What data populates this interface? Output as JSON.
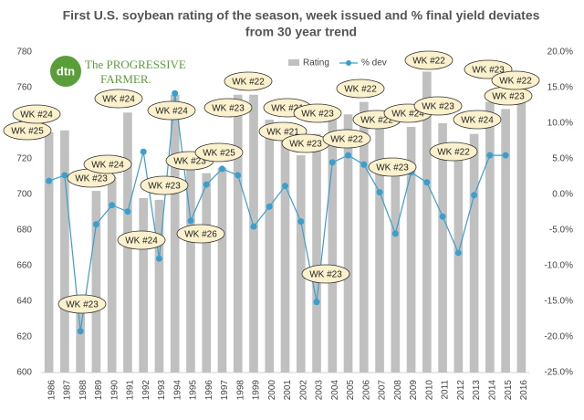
{
  "chart_data": {
    "type": "bar_line",
    "title": "First U.S. soybean rating of the season, week issued and % final yield deviates",
    "subtitle": "from 30 year trend",
    "logo_mark": "dtn",
    "logo_line1": "The PROGRESSIVE",
    "logo_line2": "FARMER.",
    "categories": [
      "1986",
      "1987",
      "1988",
      "1989",
      "1990",
      "1991",
      "1992",
      "1993",
      "1994",
      "1995",
      "1996",
      "1997",
      "1998",
      "1999",
      "2000",
      "2001",
      "2002",
      "2003",
      "2004",
      "2005",
      "2006",
      "2007",
      "2008",
      "2009",
      "2010",
      "2011",
      "2012",
      "2013",
      "2014",
      "2015",
      "2016"
    ],
    "series": [
      {
        "name": "Rating",
        "color": "#c0c0c0",
        "values": [
          735,
          736,
          636,
          702,
          710,
          746,
          698,
          697,
          756,
          718,
          712,
          715,
          756,
          756,
          742,
          735,
          722,
          734,
          742,
          745,
          752,
          740,
          720,
          738,
          769,
          740,
          728,
          734,
          752,
          748,
          760
        ]
      },
      {
        "name": "% dev",
        "color": "#3a9fcc",
        "axis": "y2",
        "values": [
          1.9,
          2.7,
          -19.2,
          -4.2,
          -1.5,
          -2.4,
          6.0,
          -9.0,
          14.2,
          -3.7,
          1.4,
          3.6,
          2.7,
          -4.5,
          -1.7,
          1.2,
          -3.8,
          -15.1,
          4.5,
          5.5,
          4.2,
          0.3,
          -5.5,
          3.1,
          1.7,
          -3.1,
          -8.2,
          -0.1,
          5.5,
          5.5,
          null
        ]
      }
    ],
    "week_labels": [
      "WK #25",
      "WK #24",
      "WK #23",
      "WK #23",
      "WK #24",
      "WK #24",
      "WK #24",
      "WK #23",
      "WK #24",
      "WK #23",
      "WK #26",
      "WK #25",
      "WK #23",
      "WK #22",
      "WK #21",
      "WK #21",
      "WK #23",
      "WK #23",
      "WK #23",
      "WK #22",
      "WK #22",
      "WK #22",
      "WK #23",
      "WK #24",
      "WK #22",
      "WK #23",
      "WK #22",
      "WK #24",
      "WK #23",
      "WK #23",
      "WK #22"
    ],
    "ylim": [
      600,
      780
    ],
    "yticks": [
      600,
      620,
      640,
      660,
      680,
      700,
      720,
      740,
      760,
      780
    ],
    "y2lim": [
      -25,
      20
    ],
    "y2ticks": [
      {
        "value": -25,
        "label": "-25.0%"
      },
      {
        "value": -20,
        "label": "-20.0%"
      },
      {
        "value": -15,
        "label": "-15.0%"
      },
      {
        "value": -10,
        "label": "-10.0%"
      },
      {
        "value": -5,
        "label": "-5.0%"
      },
      {
        "value": 0,
        "label": "0.0%"
      },
      {
        "value": 5,
        "label": "5.0%"
      },
      {
        "value": 10,
        "label": "10.0%"
      },
      {
        "value": 15,
        "label": "15.0%"
      },
      {
        "value": 20,
        "label": "20.0%"
      }
    ],
    "grid": false
  }
}
